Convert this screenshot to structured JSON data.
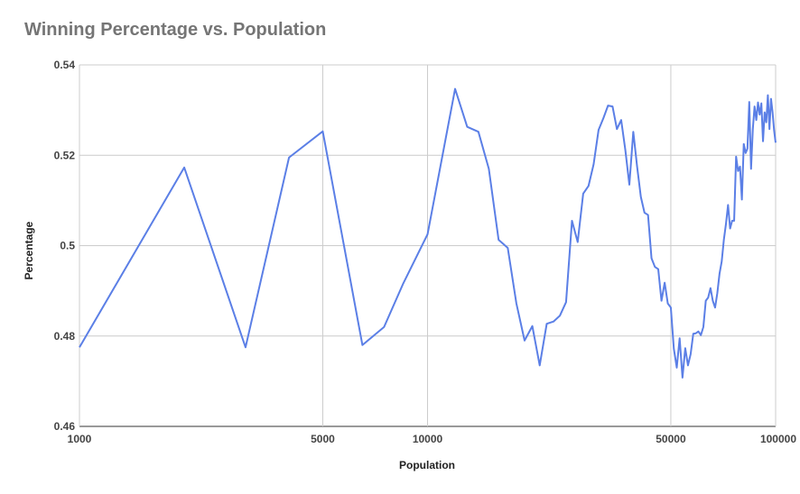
{
  "chart_data": {
    "type": "line",
    "title": "Winning Percentage vs. Population",
    "xlabel": "Population",
    "ylabel": "Percentage",
    "xscale": "log",
    "xlim": [
      1000,
      100000
    ],
    "ylim": [
      0.46,
      0.54
    ],
    "x_ticks": [
      1000,
      5000,
      10000,
      50000,
      100000
    ],
    "x_tick_labels": [
      "1000",
      "5000",
      "10000",
      "50000",
      "100000"
    ],
    "y_ticks": [
      0.46,
      0.48,
      0.5,
      0.52,
      0.54
    ],
    "y_tick_labels": [
      "0.46",
      "0.48",
      "0.5",
      "0.52",
      "0.54"
    ],
    "grid": true,
    "line_color": "#5b7fe6",
    "series": [
      {
        "x": [
          1000,
          2000,
          3000,
          4000,
          5000,
          6500,
          7500,
          8500,
          10000,
          12000,
          13000,
          14000,
          15000,
          16000,
          17000,
          18000,
          19000,
          20000,
          21000,
          22000,
          23000,
          24000,
          25000,
          26000,
          27000,
          28000,
          29000,
          30000,
          31000,
          32000,
          33000,
          34000,
          35000,
          36000,
          37000,
          38000,
          39000,
          40000,
          41000,
          42000,
          43000,
          44000,
          45000,
          46000,
          47000,
          48000,
          49000,
          50000,
          51000,
          52000,
          53000,
          54000,
          55000,
          56000,
          57000,
          58000,
          59000,
          60000,
          61000,
          62000,
          63000,
          64000,
          65000,
          66000,
          67000,
          68000,
          69000,
          70000,
          71000,
          72000,
          73000,
          74000,
          75000,
          76000,
          77000,
          78000,
          79000,
          80000,
          81000,
          82000,
          83000,
          84000,
          85000,
          86000,
          87000,
          88000,
          89000,
          90000,
          91000,
          92000,
          93000,
          94000,
          95000,
          96000,
          97000,
          98000,
          99000,
          100000
        ],
        "y": [
          0.4775,
          0.5173,
          0.4775,
          0.5195,
          0.5253,
          0.478,
          0.482,
          0.4915,
          0.5025,
          0.5347,
          0.5263,
          0.5252,
          0.517,
          0.5013,
          0.4995,
          0.4872,
          0.479,
          0.4822,
          0.4735,
          0.4827,
          0.4832,
          0.4845,
          0.4875,
          0.5055,
          0.5008,
          0.5115,
          0.5132,
          0.518,
          0.5256,
          0.5282,
          0.531,
          0.5308,
          0.5258,
          0.5278,
          0.5212,
          0.5135,
          0.5252,
          0.5175,
          0.5108,
          0.5073,
          0.5068,
          0.4972,
          0.4953,
          0.4948,
          0.4878,
          0.4918,
          0.4872,
          0.4863,
          0.4772,
          0.473,
          0.4795,
          0.4708,
          0.4773,
          0.4735,
          0.476,
          0.4805,
          0.4806,
          0.481,
          0.4802,
          0.482,
          0.4878,
          0.4885,
          0.4906,
          0.4878,
          0.4863,
          0.4895,
          0.4938,
          0.4965,
          0.5013,
          0.5048,
          0.509,
          0.5038,
          0.5055,
          0.5055,
          0.5197,
          0.5165,
          0.5175,
          0.5102,
          0.5225,
          0.5205,
          0.5215,
          0.5318,
          0.517,
          0.5258,
          0.5308,
          0.5278,
          0.5317,
          0.529,
          0.5315,
          0.5231,
          0.5295,
          0.5273,
          0.5333,
          0.5258,
          0.5325,
          0.5295,
          0.5255,
          0.5228
        ]
      }
    ]
  }
}
